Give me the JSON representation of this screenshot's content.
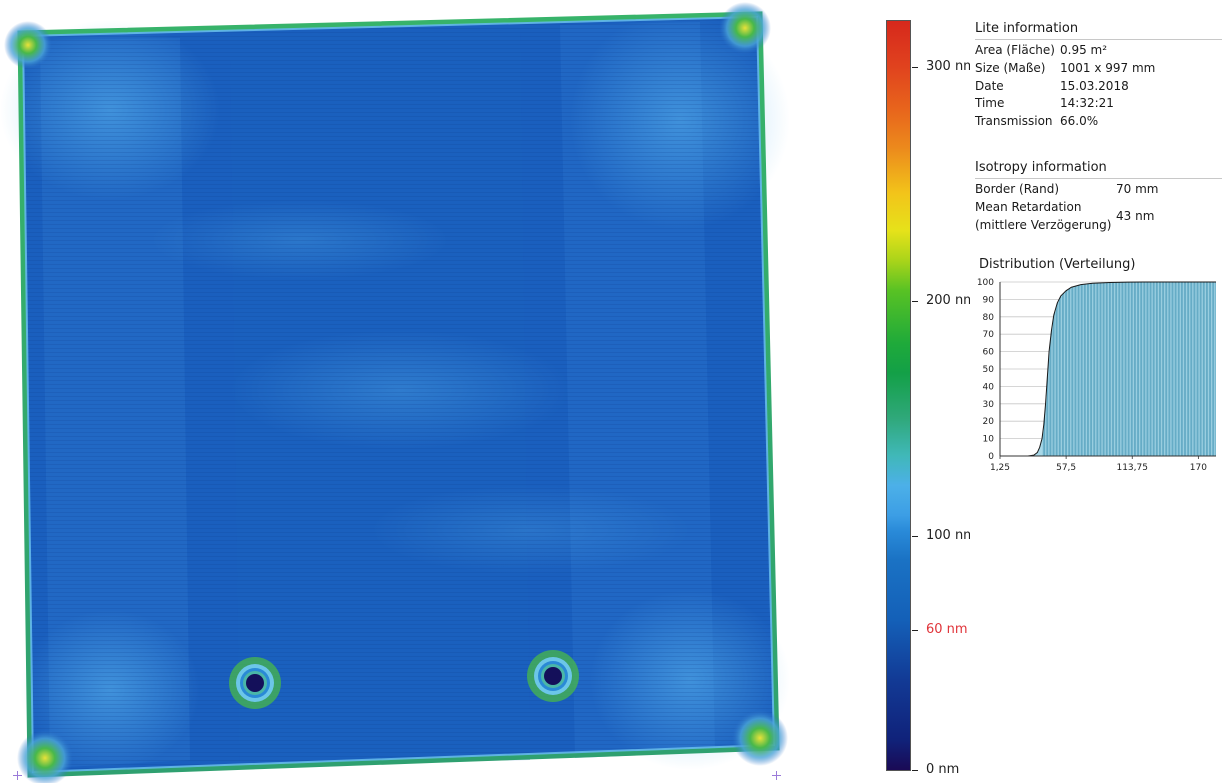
{
  "colorbar": {
    "labels": [
      "300 nm",
      "200 nm",
      "100 nm",
      "60 nm",
      "0 nm"
    ],
    "highlight_color": "#e0343a",
    "gradient_colors": [
      "#1a0a55",
      "#1460b8",
      "#4cb0e8",
      "#13a047",
      "#e6e21a",
      "#e8661c",
      "#d6281c"
    ]
  },
  "lite_info": {
    "title": "Lite information",
    "rows": [
      {
        "key": "Area (Fläche)",
        "value": "0.95 m²"
      },
      {
        "key": "Size (Maße)",
        "value": "1001 x 997 mm"
      },
      {
        "key": "Date",
        "value": "15.03.2018"
      },
      {
        "key": "Time",
        "value": "14:32:21"
      },
      {
        "key": "Transmission",
        "value": "66.0%"
      }
    ]
  },
  "isotropy_info": {
    "title": "Isotropy information",
    "border_key": "Border (Rand)",
    "border_value": "70 mm",
    "mean_key_line1": "Mean Retardation",
    "mean_key_line2": "(mittlere Verzögerung)",
    "mean_value": "43 nm"
  },
  "chart_data": {
    "type": "area",
    "title": "Distribution (Verteilung)",
    "x_tick_labels": [
      "1,25",
      "57,5",
      "113,75",
      "170"
    ],
    "y_ticks": [
      0,
      10,
      20,
      30,
      40,
      50,
      60,
      70,
      80,
      90,
      100
    ],
    "ylim": [
      0,
      100
    ],
    "xlim": [
      1.25,
      185
    ],
    "grid": "horizontal",
    "x": [
      1.25,
      15,
      25,
      30,
      33,
      35,
      37,
      38.5,
      40,
      41.5,
      43,
      45,
      47,
      50,
      53,
      57.5,
      62,
      70,
      80,
      95,
      110,
      130,
      150,
      170,
      185
    ],
    "y": [
      0,
      0,
      0,
      0.5,
      2,
      5,
      10,
      18,
      30,
      45,
      60,
      72,
      81,
      88,
      92,
      95,
      97,
      98.5,
      99.3,
      99.7,
      99.9,
      100,
      100,
      100,
      100
    ],
    "fill_color": "#a8d8e8",
    "line_color": "#1a1a1a"
  }
}
